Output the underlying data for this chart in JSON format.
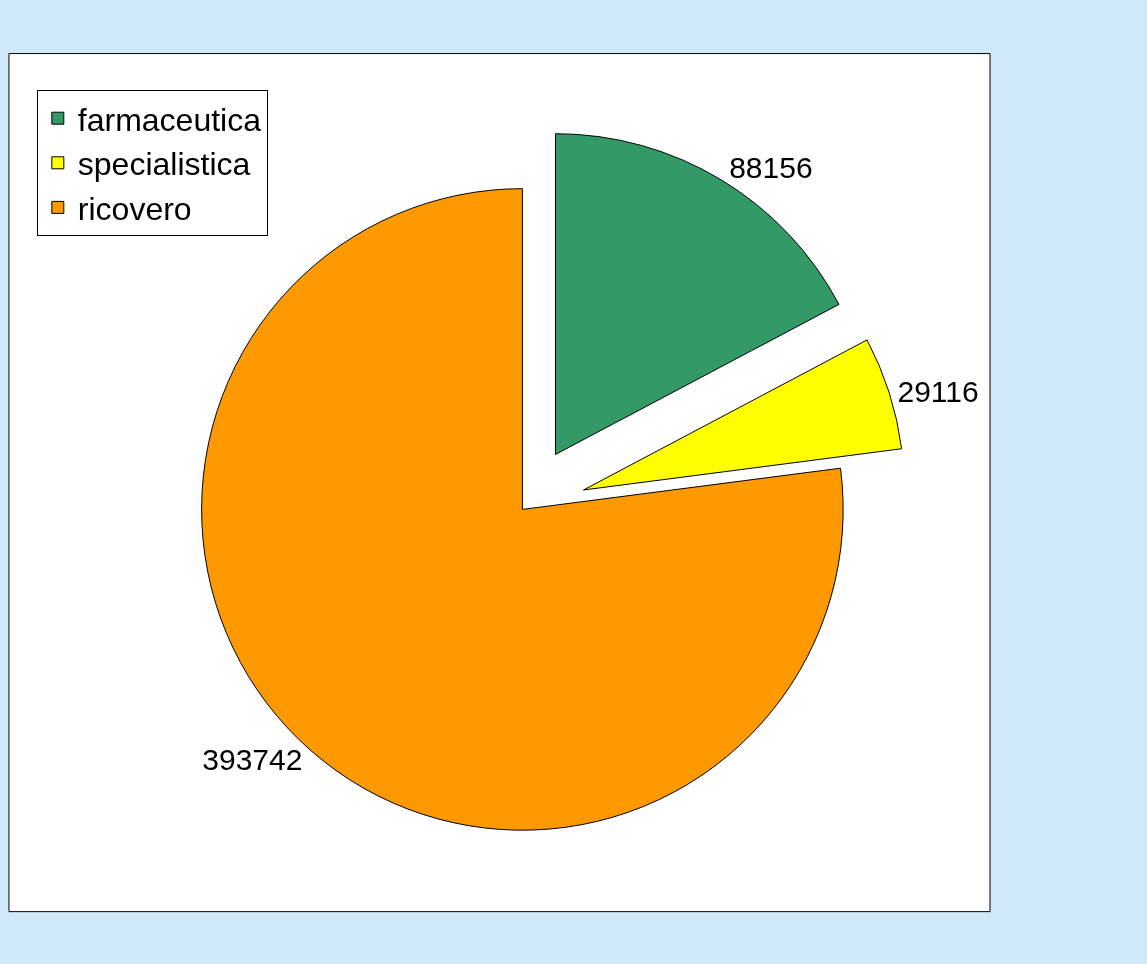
{
  "chart_data": {
    "type": "pie",
    "categories": [
      "farmaceutica",
      "specialistica",
      "ricovero"
    ],
    "values": [
      88156,
      29116,
      393742
    ],
    "colors": [
      "#339966",
      "#ffff00",
      "#ff9900"
    ],
    "data_labels": true,
    "legend": "top left"
  }
}
